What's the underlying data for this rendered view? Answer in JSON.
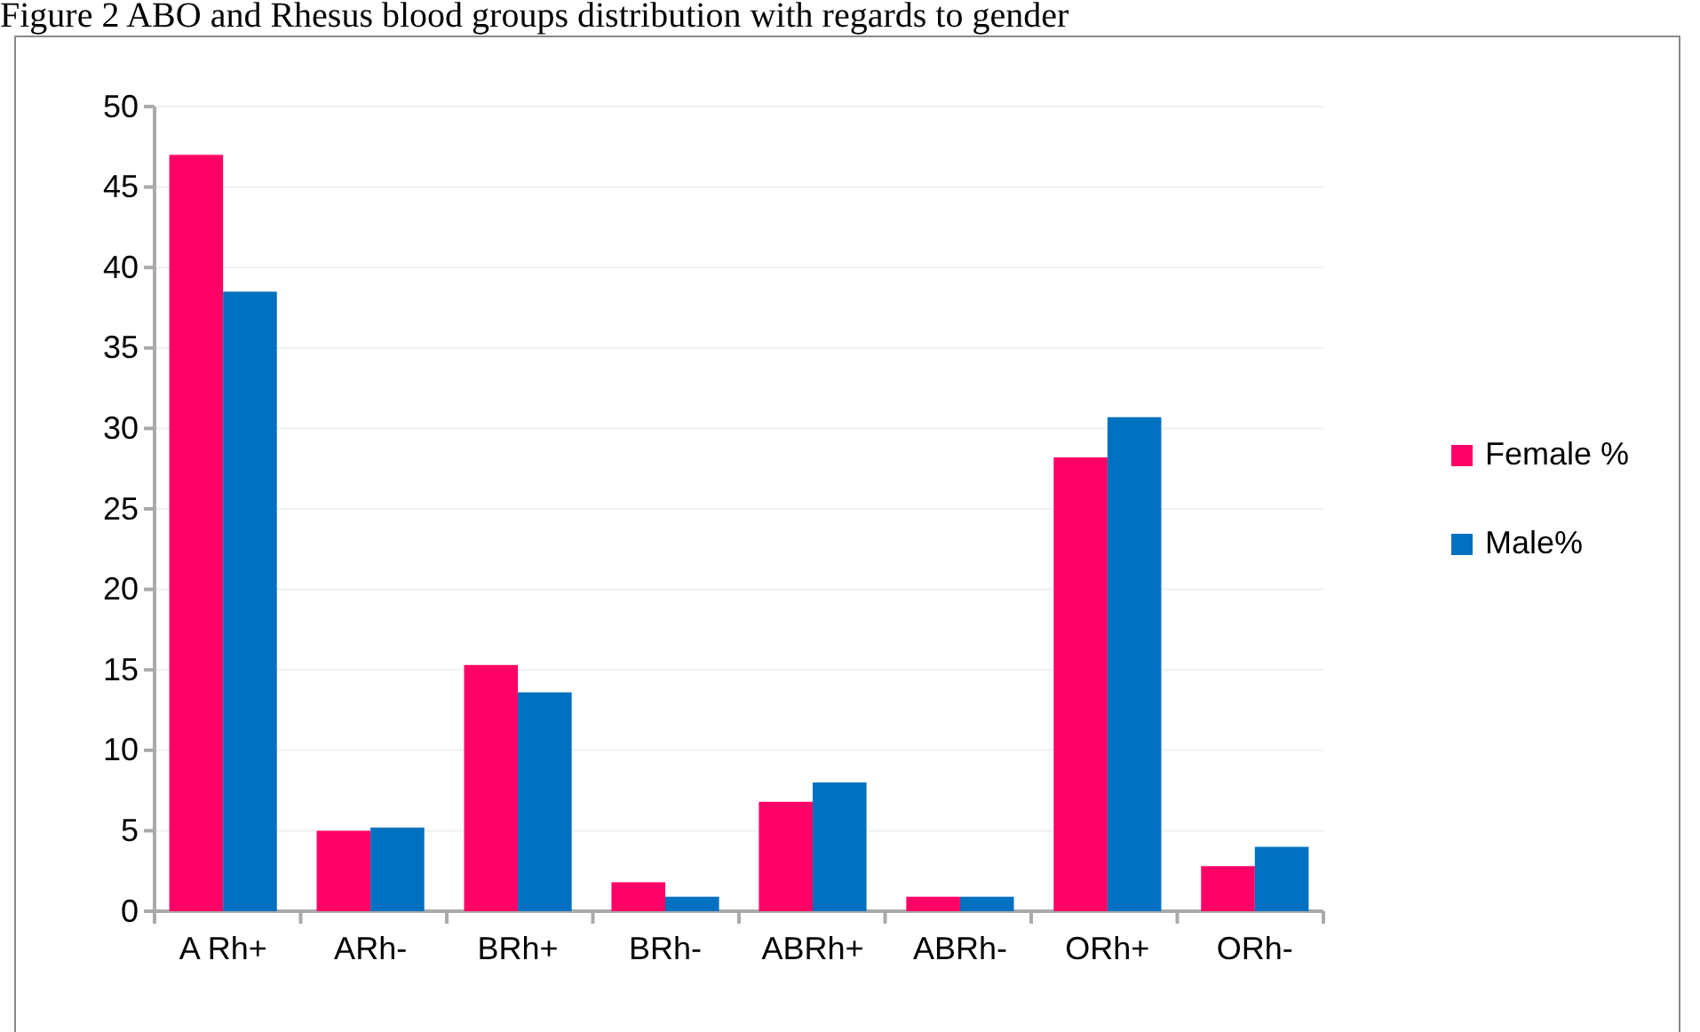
{
  "chart_data": {
    "type": "bar",
    "title": "Figure 2 ABO and Rhesus blood groups distribution with regards to gender",
    "categories": [
      "A Rh+",
      "ARh-",
      "BRh+",
      "BRh-",
      "ABRh+",
      "ABRh-",
      "ORh+",
      "ORh-"
    ],
    "series": [
      {
        "name": "Female %",
        "color": "#ff0066",
        "values": [
          47,
          5,
          15.3,
          1.8,
          6.8,
          0.9,
          28.2,
          2.8
        ]
      },
      {
        "name": "Male%",
        "color": "#0070c0",
        "values": [
          38.5,
          5.2,
          13.6,
          0.9,
          8,
          0.9,
          30.7,
          4
        ]
      }
    ],
    "ylim": [
      0,
      50
    ],
    "yticks": [
      0,
      5,
      10,
      15,
      20,
      25,
      30,
      35,
      40,
      45,
      50
    ],
    "grid": "y",
    "legend": "right"
  }
}
